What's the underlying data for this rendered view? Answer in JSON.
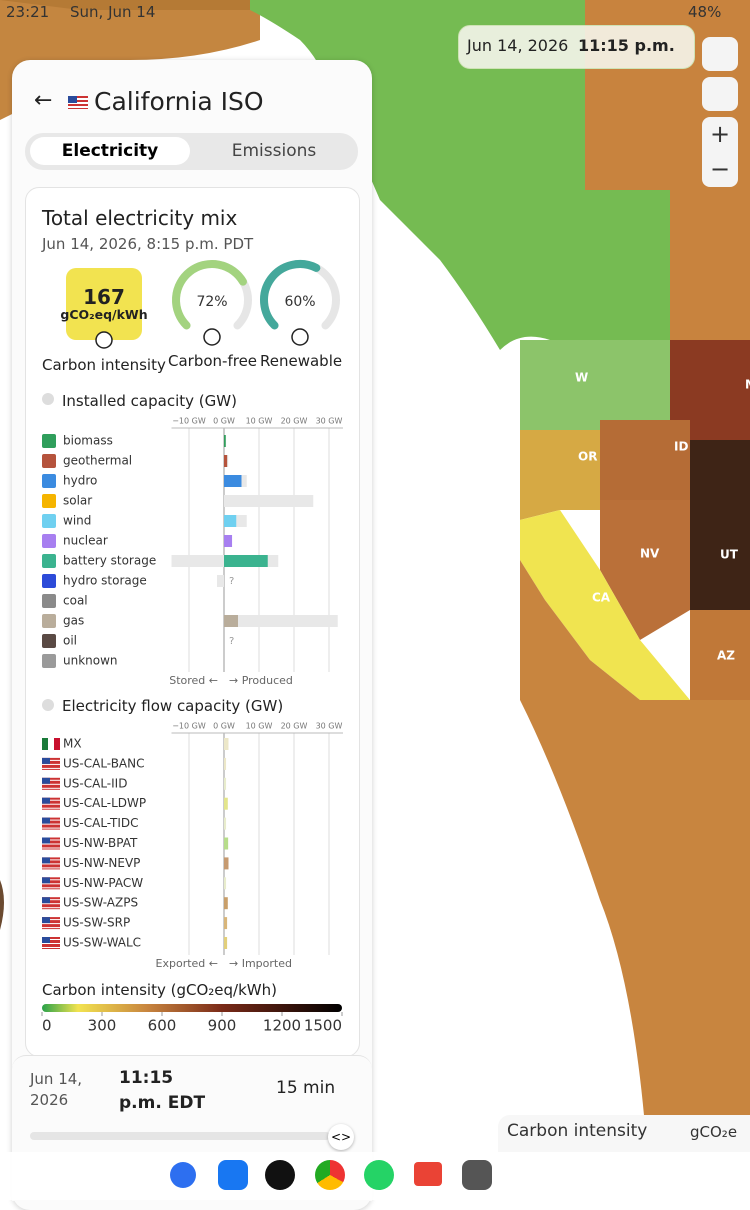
{
  "status_bar": {
    "time": "23:21",
    "date": "Sun, Jun 14",
    "battery": "48%"
  },
  "map": {
    "date": "Jun 14, 2026",
    "time": "11:15 p.m.",
    "region_labels": [
      "W",
      "OR",
      "ID",
      "NV",
      "UT",
      "CA",
      "AZ",
      "M"
    ],
    "legend": {
      "title": "Carbon intensity",
      "unit": "gCO₂e"
    }
  },
  "panel": {
    "title": "California ISO",
    "tabs": [
      "Electricity",
      "Emissions"
    ],
    "card": {
      "title": "Total electricity mix",
      "subtitle": "Jun 14, 2026, 8:15 p.m. PDT",
      "carbon_intensity": {
        "value": "167",
        "unit": "gCO₂eq/kWh",
        "label": "Carbon intensity"
      },
      "carbon_free": {
        "value": 72,
        "value_label": "72%",
        "label": "Carbon-free"
      },
      "renewable": {
        "value": 60,
        "value_label": "60%",
        "label": "Renewable"
      },
      "installed": {
        "title": "Installed capacity (GW)",
        "xlim": [
          -15,
          34
        ],
        "xticks": [
          {
            "value": -10,
            "label": "−10 GW"
          },
          {
            "value": 0,
            "label": "0 GW"
          },
          {
            "value": 10,
            "label": "10 GW"
          },
          {
            "value": 20,
            "label": "20 GW"
          },
          {
            "value": 30,
            "label": "30 GW"
          }
        ],
        "sources": [
          {
            "name": "biomass",
            "color": "#2f9e5b",
            "produced": 0.5,
            "capacity": [
              0,
              0.6
            ]
          },
          {
            "name": "geothermal",
            "color": "#b5533c",
            "produced": 0.9,
            "capacity": [
              0,
              1.2
            ]
          },
          {
            "name": "hydro",
            "color": "#3b8be0",
            "produced": 5,
            "capacity": [
              0,
              6.5
            ]
          },
          {
            "name": "solar",
            "color": "#f5b400",
            "produced": 0,
            "capacity": [
              0,
              25.5
            ]
          },
          {
            "name": "wind",
            "color": "#6fd0f0",
            "produced": 3.5,
            "capacity": [
              0,
              6.5
            ]
          },
          {
            "name": "nuclear",
            "color": "#a77ff0",
            "produced": 2.3,
            "capacity": [
              0,
              2.3
            ]
          },
          {
            "name": "battery storage",
            "color": "#3bb38f",
            "produced": 12.5,
            "capacity": [
              -15,
              15.5
            ]
          },
          {
            "name": "hydro storage",
            "color": "#2c4bd8",
            "produced": null,
            "capacity": [
              -2,
              0
            ],
            "note": "?"
          },
          {
            "name": "coal",
            "color": "#8a8a8a",
            "produced": null,
            "capacity": null
          },
          {
            "name": "gas",
            "color": "#b9ad9b",
            "produced": 4,
            "capacity": [
              0,
              32.5
            ]
          },
          {
            "name": "oil",
            "color": "#5a4a44",
            "produced": null,
            "capacity": null,
            "note": "?"
          },
          {
            "name": "unknown",
            "color": "#9a9a9a",
            "produced": null,
            "capacity": null
          }
        ],
        "left_label": "Stored ←",
        "right_label": "→ Produced"
      },
      "flows": {
        "title": "Electricity flow capacity (GW)",
        "xlim": [
          -15,
          34
        ],
        "xticks": [
          {
            "value": -10,
            "label": "−10 GW"
          },
          {
            "value": 0,
            "label": "0 GW"
          },
          {
            "value": 10,
            "label": "10 GW"
          },
          {
            "value": 20,
            "label": "20 GW"
          },
          {
            "value": 30,
            "label": "30 GW"
          }
        ],
        "zones": [
          {
            "name": "MX",
            "flag": "mx",
            "value": 1,
            "color": "#ece7c8"
          },
          {
            "name": "US-CAL-BANC",
            "flag": "us",
            "value": 0.3,
            "color": "#ece7c8"
          },
          {
            "name": "US-CAL-IID",
            "flag": "us",
            "value": 0.3,
            "color": "#e8eccc"
          },
          {
            "name": "US-CAL-LDWP",
            "flag": "us",
            "value": 0.8,
            "color": "#e3e58b"
          },
          {
            "name": "US-CAL-TIDC",
            "flag": "us",
            "value": 0.3,
            "color": "#e8eccc"
          },
          {
            "name": "US-NW-BPAT",
            "flag": "us",
            "value": 0.9,
            "color": "#b7dd8a"
          },
          {
            "name": "US-NW-NEVP",
            "flag": "us",
            "value": 1,
            "color": "#c69a70"
          },
          {
            "name": "US-NW-PACW",
            "flag": "us",
            "value": 0.3,
            "color": "#e8eccc"
          },
          {
            "name": "US-SW-AZPS",
            "flag": "us",
            "value": 0.8,
            "color": "#c99f6a"
          },
          {
            "name": "US-SW-SRP",
            "flag": "us",
            "value": 0.6,
            "color": "#d8b579"
          },
          {
            "name": "US-SW-WALC",
            "flag": "us",
            "value": 0.6,
            "color": "#e2cf7a"
          }
        ],
        "left_label": "Exported ←",
        "right_label": "→ Imported"
      },
      "legend": {
        "title": "Carbon intensity (gCO₂eq/kWh)",
        "range": [
          0,
          1500
        ],
        "ticks": [
          0,
          300,
          600,
          900,
          1200,
          1500
        ]
      }
    }
  },
  "timeline": {
    "date": "Jun 14, 2026",
    "time": "11:15 p.m. EDT",
    "interval": "15 min"
  }
}
